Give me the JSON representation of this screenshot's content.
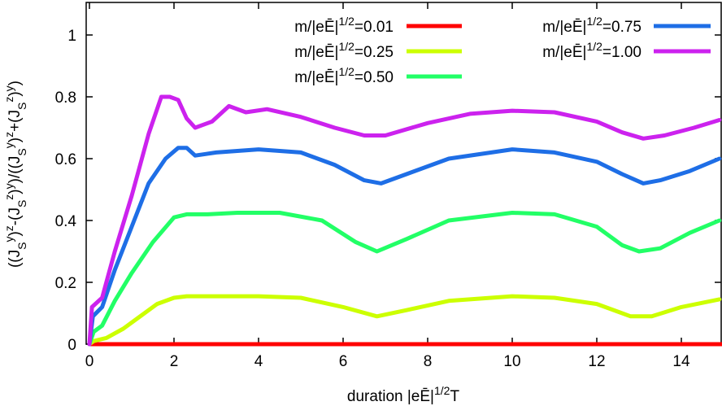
{
  "chart_data": {
    "type": "line",
    "xlabel": "duration |eĒ|^{1/2}T",
    "ylabel": "((J_S^y)^z-(J_S^z)^y)/((J_S^y)^z+(J_S^z)^y)",
    "xlim": [
      0,
      15
    ],
    "ylim": [
      0,
      1.1
    ],
    "xticks": [
      "0",
      "2",
      "4",
      "6",
      "8",
      "10",
      "12",
      "14"
    ],
    "yticks": [
      "0",
      "0.2",
      "0.4",
      "0.6",
      "0.8",
      "1"
    ],
    "grid": false,
    "legend_position": "top-right",
    "series": [
      {
        "name": "m/|eĒ|^{1/2}=0.01",
        "color": "#ff0000",
        "points": [
          [
            0,
            0
          ],
          [
            0.05,
            0.0
          ],
          [
            1,
            0.0
          ],
          [
            5,
            0.0
          ],
          [
            10,
            0.0
          ],
          [
            15,
            0.0
          ]
        ]
      },
      {
        "name": "m/|eĒ|^{1/2}=0.25",
        "color": "#ccff00",
        "points": [
          [
            0,
            0
          ],
          [
            0.1,
            0.01
          ],
          [
            0.4,
            0.02
          ],
          [
            0.8,
            0.05
          ],
          [
            1.2,
            0.09
          ],
          [
            1.6,
            0.13
          ],
          [
            2.0,
            0.15
          ],
          [
            2.3,
            0.155
          ],
          [
            3,
            0.155
          ],
          [
            4,
            0.155
          ],
          [
            5,
            0.15
          ],
          [
            6,
            0.12
          ],
          [
            6.8,
            0.09
          ],
          [
            7.5,
            0.11
          ],
          [
            8.5,
            0.14
          ],
          [
            10,
            0.155
          ],
          [
            11,
            0.15
          ],
          [
            12,
            0.13
          ],
          [
            12.8,
            0.09
          ],
          [
            13.3,
            0.09
          ],
          [
            14,
            0.12
          ],
          [
            14.9,
            0.145
          ]
        ]
      },
      {
        "name": "m/|eĒ|^{1/2}=0.50",
        "color": "#22ff66",
        "points": [
          [
            0,
            0
          ],
          [
            0.1,
            0.04
          ],
          [
            0.3,
            0.06
          ],
          [
            0.6,
            0.14
          ],
          [
            1.0,
            0.23
          ],
          [
            1.5,
            0.33
          ],
          [
            2.0,
            0.41
          ],
          [
            2.3,
            0.42
          ],
          [
            2.8,
            0.42
          ],
          [
            3.5,
            0.425
          ],
          [
            4.5,
            0.425
          ],
          [
            5.5,
            0.4
          ],
          [
            6.3,
            0.33
          ],
          [
            6.8,
            0.3
          ],
          [
            7.5,
            0.34
          ],
          [
            8.5,
            0.4
          ],
          [
            10,
            0.425
          ],
          [
            11,
            0.42
          ],
          [
            12,
            0.38
          ],
          [
            12.6,
            0.32
          ],
          [
            13,
            0.3
          ],
          [
            13.5,
            0.31
          ],
          [
            14.2,
            0.36
          ],
          [
            14.9,
            0.4
          ]
        ]
      },
      {
        "name": "m/|eĒ|^{1/2}=0.75",
        "color": "#1e6ee6",
        "points": [
          [
            0,
            0
          ],
          [
            0.08,
            0.09
          ],
          [
            0.3,
            0.12
          ],
          [
            0.6,
            0.24
          ],
          [
            1.0,
            0.38
          ],
          [
            1.4,
            0.52
          ],
          [
            1.8,
            0.6
          ],
          [
            2.1,
            0.635
          ],
          [
            2.3,
            0.635
          ],
          [
            2.5,
            0.61
          ],
          [
            3,
            0.62
          ],
          [
            4,
            0.63
          ],
          [
            5,
            0.62
          ],
          [
            5.8,
            0.58
          ],
          [
            6.5,
            0.53
          ],
          [
            6.9,
            0.52
          ],
          [
            7.5,
            0.55
          ],
          [
            8.5,
            0.6
          ],
          [
            10,
            0.63
          ],
          [
            11,
            0.62
          ],
          [
            12,
            0.59
          ],
          [
            12.6,
            0.55
          ],
          [
            13.1,
            0.52
          ],
          [
            13.5,
            0.53
          ],
          [
            14.2,
            0.56
          ],
          [
            14.9,
            0.6
          ]
        ]
      },
      {
        "name": "m/|eĒ|^{1/2}=1.00",
        "color": "#cc22ee",
        "points": [
          [
            0,
            0
          ],
          [
            0.06,
            0.12
          ],
          [
            0.3,
            0.15
          ],
          [
            0.6,
            0.3
          ],
          [
            1.0,
            0.48
          ],
          [
            1.4,
            0.68
          ],
          [
            1.7,
            0.8
          ],
          [
            1.9,
            0.8
          ],
          [
            2.1,
            0.79
          ],
          [
            2.3,
            0.73
          ],
          [
            2.5,
            0.7
          ],
          [
            2.9,
            0.72
          ],
          [
            3.3,
            0.77
          ],
          [
            3.7,
            0.75
          ],
          [
            4.2,
            0.76
          ],
          [
            5,
            0.735
          ],
          [
            5.8,
            0.7
          ],
          [
            6.5,
            0.675
          ],
          [
            7,
            0.675
          ],
          [
            8,
            0.715
          ],
          [
            9,
            0.745
          ],
          [
            10,
            0.755
          ],
          [
            11,
            0.75
          ],
          [
            12,
            0.72
          ],
          [
            12.6,
            0.685
          ],
          [
            13.1,
            0.665
          ],
          [
            13.6,
            0.675
          ],
          [
            14.3,
            0.7
          ],
          [
            14.9,
            0.725
          ]
        ]
      }
    ]
  }
}
